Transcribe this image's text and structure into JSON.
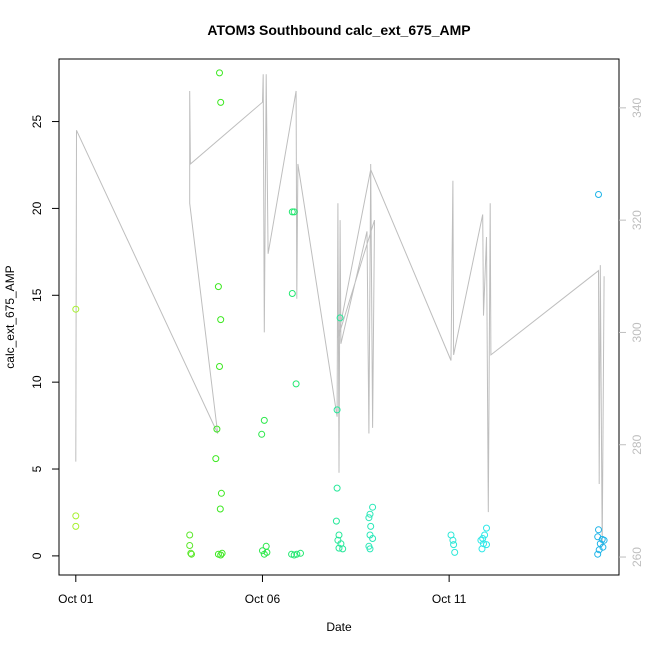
{
  "chart_data": {
    "type": "scatter",
    "title": "ATOM3 Southbound calc_ext_675_AMP",
    "xlabel": "Date",
    "ylabel": "calc_ext_675_AMP",
    "x_ticks": [
      {
        "label": "Oct 01",
        "value": 0
      },
      {
        "label": "Oct 06",
        "value": 5
      },
      {
        "label": "Oct 11",
        "value": 10
      }
    ],
    "xlim": [
      -0.45,
      14.55
    ],
    "ylim": [
      -1.1,
      28.6
    ],
    "y_ticks": [
      0,
      5,
      10,
      15,
      20,
      25
    ],
    "y2lim": [
      256.8,
      348.7
    ],
    "y2_ticks": [
      260,
      280,
      300,
      320,
      340
    ],
    "grid": false,
    "points_color_note": "point color shifts from light green to blue over time",
    "series": [
      {
        "axis": "left",
        "mark": "point",
        "points": [
          {
            "x": 0.0,
            "y": 14.2,
            "color": "#a6f02e"
          },
          {
            "x": 0.0,
            "y": 2.3,
            "color": "#a6f02e"
          },
          {
            "x": 0.0,
            "y": 1.7,
            "color": "#a6f02e"
          },
          {
            "x": 3.05,
            "y": 1.2,
            "color": "#5be82a"
          },
          {
            "x": 3.05,
            "y": 0.6,
            "color": "#5be82a"
          },
          {
            "x": 3.08,
            "y": 0.15,
            "color": "#5be82a"
          },
          {
            "x": 3.1,
            "y": 0.1,
            "color": "#5be82a"
          },
          {
            "x": 3.75,
            "y": 5.6,
            "color": "#3ce820"
          },
          {
            "x": 3.78,
            "y": 7.3,
            "color": "#3ce820"
          },
          {
            "x": 3.82,
            "y": 15.5,
            "color": "#3ce820"
          },
          {
            "x": 3.85,
            "y": 27.8,
            "color": "#3ce820"
          },
          {
            "x": 3.88,
            "y": 26.1,
            "color": "#3ce820"
          },
          {
            "x": 3.88,
            "y": 13.6,
            "color": "#3ce820"
          },
          {
            "x": 3.85,
            "y": 10.9,
            "color": "#3ce820"
          },
          {
            "x": 3.9,
            "y": 3.6,
            "color": "#3ce820"
          },
          {
            "x": 3.87,
            "y": 2.7,
            "color": "#3ce820"
          },
          {
            "x": 3.82,
            "y": 0.1,
            "color": "#3ce820"
          },
          {
            "x": 3.88,
            "y": 0.05,
            "color": "#3ce820"
          },
          {
            "x": 3.92,
            "y": 0.15,
            "color": "#3ce820"
          },
          {
            "x": 4.98,
            "y": 7.0,
            "color": "#2be84a"
          },
          {
            "x": 5.05,
            "y": 7.8,
            "color": "#2be84a"
          },
          {
            "x": 5.0,
            "y": 0.3,
            "color": "#2be84a"
          },
          {
            "x": 5.05,
            "y": 0.1,
            "color": "#2be84a"
          },
          {
            "x": 5.1,
            "y": 0.55,
            "color": "#2be84a"
          },
          {
            "x": 5.12,
            "y": 0.2,
            "color": "#2be84a"
          },
          {
            "x": 5.8,
            "y": 19.8,
            "color": "#22e870"
          },
          {
            "x": 5.85,
            "y": 19.8,
            "color": "#22e870"
          },
          {
            "x": 5.8,
            "y": 15.1,
            "color": "#22e870"
          },
          {
            "x": 5.9,
            "y": 9.9,
            "color": "#22e870"
          },
          {
            "x": 5.78,
            "y": 0.1,
            "color": "#22e870"
          },
          {
            "x": 5.85,
            "y": 0.05,
            "color": "#22e870"
          },
          {
            "x": 5.92,
            "y": 0.1,
            "color": "#22e870"
          },
          {
            "x": 6.02,
            "y": 0.15,
            "color": "#22e870"
          },
          {
            "x": 7.0,
            "y": 8.4,
            "color": "#26e89a"
          },
          {
            "x": 7.08,
            "y": 13.7,
            "color": "#26e89a"
          },
          {
            "x": 7.0,
            "y": 3.9,
            "color": "#26e89a"
          },
          {
            "x": 6.98,
            "y": 2.0,
            "color": "#26e89a"
          },
          {
            "x": 7.05,
            "y": 1.2,
            "color": "#26e89a"
          },
          {
            "x": 7.02,
            "y": 0.9,
            "color": "#26e89a"
          },
          {
            "x": 7.1,
            "y": 0.7,
            "color": "#26e89a"
          },
          {
            "x": 7.05,
            "y": 0.45,
            "color": "#26e89a"
          },
          {
            "x": 7.15,
            "y": 0.4,
            "color": "#26e89a"
          },
          {
            "x": 7.95,
            "y": 2.8,
            "color": "#2ae8b8"
          },
          {
            "x": 7.88,
            "y": 2.4,
            "color": "#2ae8b8"
          },
          {
            "x": 7.85,
            "y": 2.2,
            "color": "#2ae8b8"
          },
          {
            "x": 7.9,
            "y": 1.7,
            "color": "#2ae8b8"
          },
          {
            "x": 7.88,
            "y": 1.2,
            "color": "#2ae8b8"
          },
          {
            "x": 7.95,
            "y": 1.0,
            "color": "#2ae8b8"
          },
          {
            "x": 7.85,
            "y": 0.55,
            "color": "#2ae8b8"
          },
          {
            "x": 7.88,
            "y": 0.4,
            "color": "#2ae8b8"
          },
          {
            "x": 10.05,
            "y": 1.2,
            "color": "#2ee8d8"
          },
          {
            "x": 10.1,
            "y": 0.9,
            "color": "#2ee8d8"
          },
          {
            "x": 10.12,
            "y": 0.65,
            "color": "#2ee8d8"
          },
          {
            "x": 10.15,
            "y": 0.2,
            "color": "#2ee8d8"
          },
          {
            "x": 10.85,
            "y": 0.9,
            "color": "#2ee8e8"
          },
          {
            "x": 10.9,
            "y": 1.0,
            "color": "#2ee8e8"
          },
          {
            "x": 10.95,
            "y": 1.2,
            "color": "#2ee8e8"
          },
          {
            "x": 11.0,
            "y": 1.6,
            "color": "#2ee8e8"
          },
          {
            "x": 10.92,
            "y": 0.7,
            "color": "#2ee8e8"
          },
          {
            "x": 11.0,
            "y": 0.65,
            "color": "#2ee8e8"
          },
          {
            "x": 10.88,
            "y": 0.4,
            "color": "#2ee8e8"
          },
          {
            "x": 14.0,
            "y": 20.8,
            "color": "#1eb4e8"
          },
          {
            "x": 14.0,
            "y": 1.5,
            "color": "#1eb4e8"
          },
          {
            "x": 13.98,
            "y": 1.1,
            "color": "#1eb4e8"
          },
          {
            "x": 14.1,
            "y": 0.95,
            "color": "#1eb4e8"
          },
          {
            "x": 14.15,
            "y": 0.9,
            "color": "#1eb4e8"
          },
          {
            "x": 14.05,
            "y": 0.7,
            "color": "#1eb4e8"
          },
          {
            "x": 14.12,
            "y": 0.5,
            "color": "#1eb4e8"
          },
          {
            "x": 14.02,
            "y": 0.35,
            "color": "#1eb4e8"
          },
          {
            "x": 13.98,
            "y": 0.1,
            "color": "#1eb4e8"
          }
        ]
      },
      {
        "axis": "right",
        "mark": "line",
        "color": "#bebebe",
        "points": [
          {
            "x": 0.0,
            "y": 277
          },
          {
            "x": 0.02,
            "y": 336
          },
          {
            "x": 3.8,
            "y": 282
          },
          {
            "x": 3.05,
            "y": 323
          },
          {
            "x": 3.05,
            "y": 343
          },
          {
            "x": 3.07,
            "y": 330
          },
          {
            "x": 5.0,
            "y": 341
          },
          {
            "x": 5.02,
            "y": 346
          },
          {
            "x": 5.05,
            "y": 300
          },
          {
            "x": 5.1,
            "y": 346
          },
          {
            "x": 5.15,
            "y": 314
          },
          {
            "x": 5.9,
            "y": 343
          },
          {
            "x": 5.92,
            "y": 306
          },
          {
            "x": 5.95,
            "y": 330
          },
          {
            "x": 7.0,
            "y": 285
          },
          {
            "x": 7.02,
            "y": 323
          },
          {
            "x": 7.05,
            "y": 275
          },
          {
            "x": 7.08,
            "y": 320
          },
          {
            "x": 7.1,
            "y": 298
          },
          {
            "x": 7.8,
            "y": 318
          },
          {
            "x": 7.85,
            "y": 282
          },
          {
            "x": 7.9,
            "y": 330
          },
          {
            "x": 7.95,
            "y": 283
          },
          {
            "x": 8.0,
            "y": 320
          },
          {
            "x": 7.02,
            "y": 299
          },
          {
            "x": 7.9,
            "y": 329
          },
          {
            "x": 10.05,
            "y": 295
          },
          {
            "x": 10.1,
            "y": 327
          },
          {
            "x": 10.12,
            "y": 296
          },
          {
            "x": 10.9,
            "y": 321
          },
          {
            "x": 10.92,
            "y": 303
          },
          {
            "x": 11.0,
            "y": 317
          },
          {
            "x": 11.05,
            "y": 268
          },
          {
            "x": 11.1,
            "y": 323
          },
          {
            "x": 11.12,
            "y": 296
          },
          {
            "x": 14.0,
            "y": 311
          },
          {
            "x": 14.02,
            "y": 273
          },
          {
            "x": 14.05,
            "y": 312
          },
          {
            "x": 14.1,
            "y": 262
          },
          {
            "x": 14.15,
            "y": 310
          }
        ]
      }
    ]
  }
}
